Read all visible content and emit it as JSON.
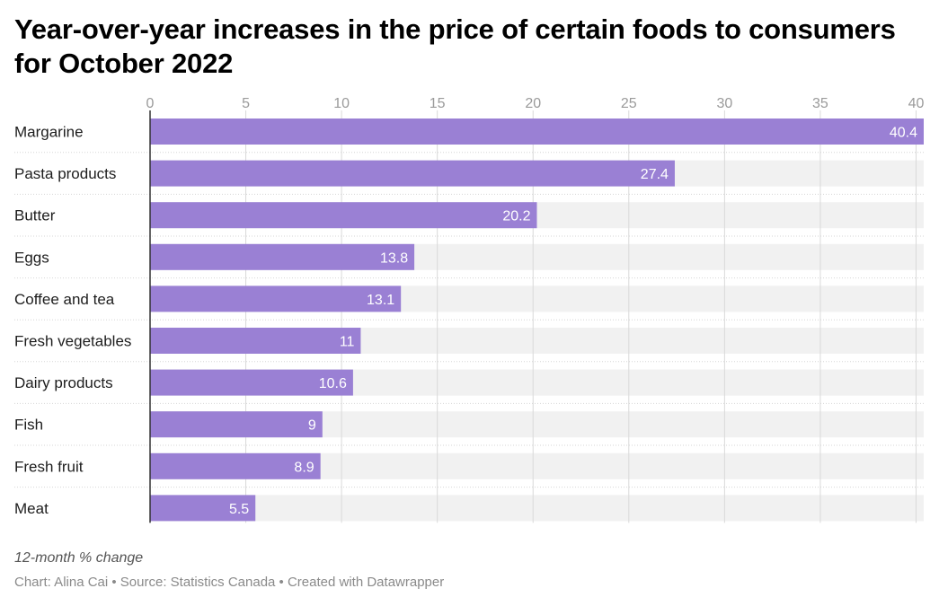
{
  "chart_data": {
    "type": "bar",
    "orientation": "horizontal",
    "title": "Year-over-year increases in the price of certain foods to consumers for October 2022",
    "categories": [
      "Margarine",
      "Pasta products",
      "Butter",
      "Eggs",
      "Coffee and tea",
      "Fresh vegetables",
      "Dairy products",
      "Fish",
      "Fresh fruit",
      "Meat"
    ],
    "values": [
      40.4,
      27.4,
      20.2,
      13.8,
      13.1,
      11,
      10.6,
      9,
      8.9,
      5.5
    ],
    "value_labels": [
      "40.4",
      "27.4",
      "20.2",
      "13.8",
      "13.1",
      "11",
      "10.6",
      "9",
      "8.9",
      "5.5"
    ],
    "xticks": [
      "0",
      "5",
      "10",
      "15",
      "20",
      "25",
      "30",
      "35",
      "40"
    ],
    "xlim": [
      0,
      40.4
    ],
    "grid": true,
    "bar_color": "#9a80d4",
    "track_color": "#f1f1f1",
    "note": "12-month % change",
    "credit": "Chart: Alina Cai • Source: Statistics Canada • Created with Datawrapper"
  }
}
